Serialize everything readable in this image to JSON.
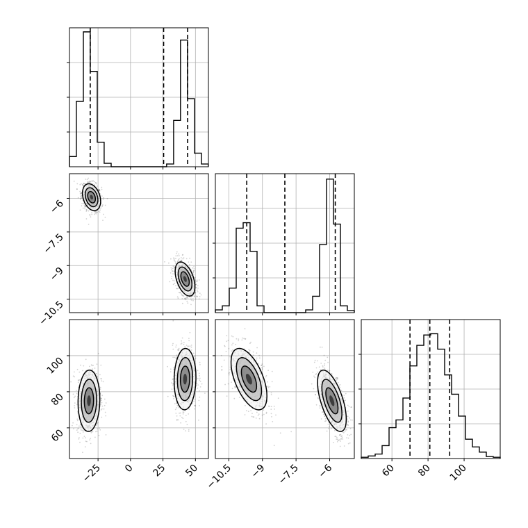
{
  "chart_data": [
    {
      "panel": "hist-p0",
      "type": "histogram",
      "xlim": [
        -47,
        60
      ],
      "ylim": [
        0,
        1.02
      ],
      "xticks": [
        -25,
        0,
        25,
        50
      ],
      "quantile_lines": [
        -31,
        25.5,
        44
      ],
      "edges": [
        -47,
        -41.7,
        -36.3,
        -31,
        -25.6,
        -20.3,
        -14.9,
        -9.6,
        -4.2,
        1.1,
        6.5,
        11.8,
        17.2,
        22.5,
        27.8,
        33.2,
        38.5,
        43.9,
        49.2,
        54.6,
        59.9
      ],
      "heights": [
        0.075,
        0.48,
        0.99,
        0.7,
        0.18,
        0.025,
        0,
        0,
        0,
        0,
        0,
        0,
        0,
        0,
        0.02,
        0.34,
        0.93,
        0.5,
        0.1,
        0.02
      ]
    },
    {
      "panel": "hist-p1",
      "type": "histogram",
      "xlim": [
        -11.1,
        -4.9
      ],
      "ylim": [
        0,
        1.02
      ],
      "xticks": [
        -10.5,
        -9.0,
        -7.5,
        -6.0
      ],
      "quantile_lines": [
        -9.7,
        -8.0,
        -5.75
      ],
      "edges": [
        -11.1,
        -10.79,
        -10.48,
        -10.17,
        -9.86,
        -9.55,
        -9.24,
        -8.93,
        -8.62,
        -8.31,
        -8.0,
        -7.69,
        -7.38,
        -7.07,
        -6.76,
        -6.45,
        -6.14,
        -5.83,
        -5.52,
        -5.21,
        -4.9
      ],
      "heights": [
        0.02,
        0.05,
        0.18,
        0.62,
        0.66,
        0.45,
        0.05,
        0,
        0,
        0,
        0,
        0,
        0,
        0.02,
        0.12,
        0.5,
        0.98,
        0.65,
        0.05,
        0.015
      ]
    },
    {
      "panel": "hist-p2",
      "type": "histogram",
      "xlim": [
        43,
        120
      ],
      "ylim": [
        0,
        1.08
      ],
      "xticks": [
        60,
        80,
        100
      ],
      "quantile_lines": [
        70,
        81,
        92
      ],
      "edges": [
        43,
        46.85,
        50.7,
        54.55,
        58.4,
        62.25,
        66.1,
        69.95,
        73.8,
        77.65,
        81.5,
        85.35,
        89.2,
        93.05,
        96.9,
        100.75,
        104.6,
        108.45,
        112.3,
        116.15,
        120
      ],
      "heights": [
        0.01,
        0.02,
        0.035,
        0.1,
        0.24,
        0.3,
        0.47,
        0.72,
        0.88,
        0.96,
        0.97,
        0.85,
        0.65,
        0.5,
        0.33,
        0.15,
        0.09,
        0.05,
        0.015,
        0.01
      ]
    },
    {
      "panel": "joint-p0-p1",
      "type": "scatter",
      "xlim": [
        -47,
        60
      ],
      "ylim": [
        -11.1,
        -4.9
      ],
      "xticks": [
        -25,
        0,
        25,
        50
      ],
      "yticks": [
        -10.5,
        -9.0,
        -7.5,
        -6.0
      ],
      "clusters": [
        {
          "cx": -30,
          "cy": -5.95,
          "sx": 3.5,
          "sy": 0.3,
          "rho": -0.3
        },
        {
          "cx": 42,
          "cy": -9.6,
          "sx": 3.8,
          "sy": 0.38,
          "rho": -0.45
        }
      ]
    },
    {
      "panel": "joint-p0-p2",
      "type": "scatter",
      "xlim": [
        -47,
        60
      ],
      "ylim": [
        43,
        120
      ],
      "xticks": [
        -25,
        0,
        25,
        50
      ],
      "yticks": [
        60,
        80,
        100
      ],
      "clusters": [
        {
          "cx": -32,
          "cy": 75,
          "sx": 4.2,
          "sy": 8.5,
          "rho": 0.05
        },
        {
          "cx": 42,
          "cy": 87,
          "sx": 4.2,
          "sy": 8.5,
          "rho": 0.05
        }
      ]
    },
    {
      "panel": "joint-p1-p2",
      "type": "scatter",
      "xlim": [
        -11.1,
        -4.9
      ],
      "ylim": [
        43,
        120
      ],
      "xticks": [
        -10.5,
        -9.0,
        -7.5,
        -6.0
      ],
      "yticks": [
        60,
        80,
        100
      ],
      "clusters": [
        {
          "cx": -9.6,
          "cy": 87,
          "sx": 0.4,
          "sy": 8.5,
          "rho": -0.55
        },
        {
          "cx": -5.9,
          "cy": 75,
          "sx": 0.32,
          "sy": 8.5,
          "rho": -0.6
        }
      ]
    }
  ]
}
